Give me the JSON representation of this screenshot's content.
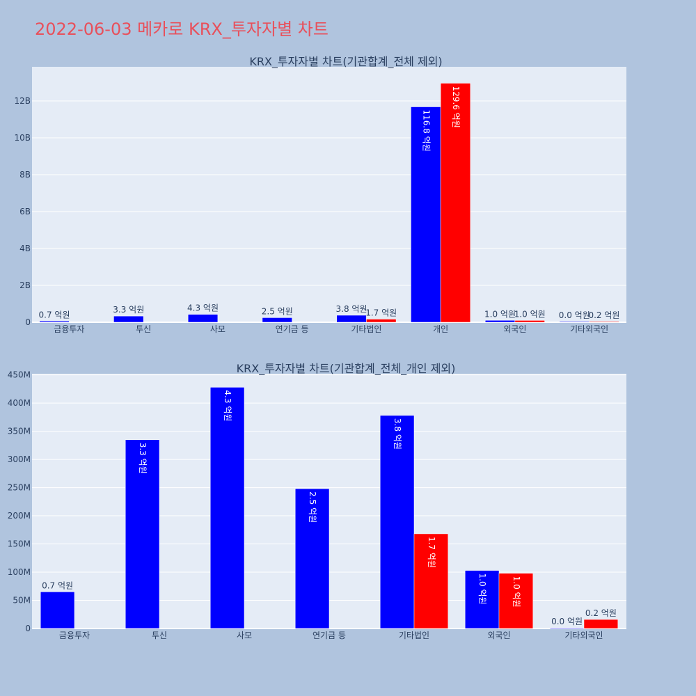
{
  "page": {
    "title": "2022-06-03 메카로 KRX_투자자별 차트"
  },
  "colors": {
    "buy": "#0000ff",
    "sell": "#ff0000",
    "plot_bg": "#e5ecf6",
    "page_bg": "#b0c4de",
    "title": "#e8505b",
    "text": "#2a3f5f"
  },
  "chart_data": [
    {
      "type": "bar",
      "title": "KRX_투자자별 차트(기관합계_전체 제외)",
      "categories": [
        "금융투자",
        "투신",
        "사모",
        "연기금 등",
        "기타법인",
        "개인",
        "외국인",
        "기타외국인"
      ],
      "series": [
        {
          "values": [
            65000000,
            335000000,
            428000000,
            248000000,
            378000000,
            11680000000,
            103000000,
            1000000
          ],
          "labels": [
            "0.7 억원",
            "3.3 억원",
            "4.3 억원",
            "2.5 억원",
            "3.8 억원",
            "116.8 억원",
            "1.0 억원",
            "0.0 억원"
          ]
        },
        {
          "values": [
            null,
            null,
            null,
            null,
            168000000,
            12960000000,
            98000000,
            16000000
          ],
          "labels": [
            "",
            "",
            "",
            "",
            "1.7 억원",
            "129.6 억원",
            "1.0 억원",
            "0.2 억원"
          ]
        }
      ],
      "yticks": [
        "0",
        "2B",
        "4B",
        "6B",
        "8B",
        "10B",
        "12B"
      ],
      "ytick_values": [
        0,
        2000000000,
        4000000000,
        6000000000,
        8000000000,
        10000000000,
        12000000000
      ],
      "ylim": [
        0,
        13850000000
      ],
      "grid": true
    },
    {
      "type": "bar",
      "title": "KRX_투자자별 차트(기관합계_전체_개인 제외)",
      "categories": [
        "금융투자",
        "투신",
        "사모",
        "연기금 등",
        "기타법인",
        "외국인",
        "기타외국인"
      ],
      "series": [
        {
          "values": [
            65000000,
            335000000,
            428000000,
            248000000,
            378000000,
            103000000,
            1000000
          ],
          "labels": [
            "0.7 억원",
            "3.3 억원",
            "4.3 억원",
            "2.5 억원",
            "3.8 억원",
            "1.0 억원",
            "0.0 억원"
          ]
        },
        {
          "values": [
            null,
            null,
            null,
            null,
            168000000,
            98000000,
            16000000
          ],
          "labels": [
            "",
            "",
            "",
            "",
            "1.7 억원",
            "1.0 억원",
            "0.2 억원"
          ]
        }
      ],
      "yticks": [
        "0",
        "50M",
        "100M",
        "150M",
        "200M",
        "250M",
        "300M",
        "350M",
        "400M",
        "450M"
      ],
      "ytick_values": [
        0,
        50000000,
        100000000,
        150000000,
        200000000,
        250000000,
        300000000,
        350000000,
        400000000,
        450000000
      ],
      "ylim": [
        0,
        452000000
      ],
      "grid": true
    }
  ]
}
